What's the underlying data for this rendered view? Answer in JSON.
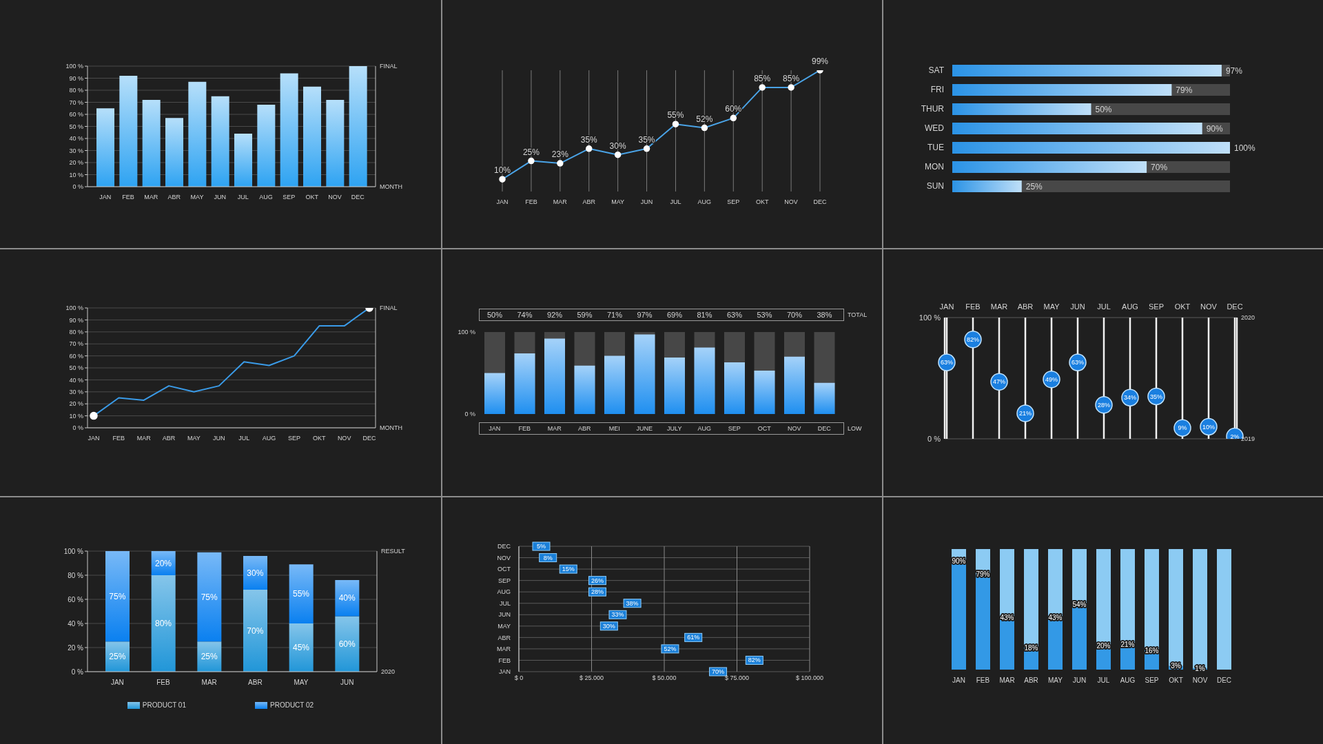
{
  "chart_data": [
    {
      "type": "bar",
      "categories": [
        "JAN",
        "FEB",
        "MAR",
        "ABR",
        "MAY",
        "JUN",
        "JUL",
        "AUG",
        "SEP",
        "OKT",
        "NOV",
        "DEC"
      ],
      "values": [
        65,
        92,
        72,
        57,
        87,
        75,
        44,
        68,
        94,
        83,
        72,
        100
      ],
      "color": "#2ea3f2",
      "ylim": [
        0,
        100
      ],
      "yticks": [
        {
          "value": 0,
          "label": "0 %"
        },
        {
          "value": 10,
          "label": "10 %"
        },
        {
          "value": 20,
          "label": "20 %"
        },
        {
          "value": 30,
          "label": "30 %"
        },
        {
          "value": 40,
          "label": "40 %"
        },
        {
          "value": 50,
          "label": "50 %"
        },
        {
          "value": 60,
          "label": "60 %"
        },
        {
          "value": 70,
          "label": "70 %"
        },
        {
          "value": 80,
          "label": "80 %"
        },
        {
          "value": 90,
          "label": "90 %"
        },
        {
          "value": 100,
          "label": "100 %"
        }
      ],
      "annotations": [
        "FINAL",
        "MONTH"
      ],
      "grid": "y"
    },
    {
      "type": "line",
      "categories": [
        "JAN",
        "FEB",
        "MAR",
        "ABR",
        "MAY",
        "JUN",
        "JUL",
        "AUG",
        "SEP",
        "OKT",
        "NOV",
        "DEC"
      ],
      "values": [
        10,
        25,
        23,
        35,
        30,
        35,
        55,
        52,
        60,
        85,
        85,
        99
      ],
      "value_labels": [
        "10%",
        "25%",
        "23%",
        "35%",
        "30%",
        "35%",
        "55%",
        "52%",
        "60%",
        "85%",
        "85%",
        "99%"
      ],
      "color": "#4aa3e6",
      "marker": "circle",
      "grid": "x"
    },
    {
      "type": "bar",
      "orientation": "horizontal",
      "categories": [
        "SAT",
        "FRI",
        "THUR",
        "WED",
        "TUE",
        "MON",
        "SUN"
      ],
      "values": [
        97,
        79,
        50,
        90,
        100,
        70,
        25
      ],
      "value_labels": [
        "97%",
        "79%",
        "50%",
        "90%",
        "100%",
        "70%",
        "25%"
      ],
      "color": "#2b93e6"
    },
    {
      "type": "line",
      "categories": [
        "JAN",
        "FEB",
        "MAR",
        "ABR",
        "MAY",
        "JUN",
        "JUL",
        "AUG",
        "SEP",
        "OKT",
        "NOV",
        "DEC"
      ],
      "series": [
        {
          "values": [
            10,
            25,
            23,
            35,
            30,
            35,
            55,
            52,
            60,
            85,
            85,
            100
          ],
          "color": "#3a9be8"
        },
        {
          "type": "scatter",
          "x": [
            "JAN",
            "DEC"
          ],
          "values": [
            10,
            100
          ],
          "color": "#ffffff",
          "marker": "circle"
        }
      ],
      "ylim": [
        0,
        100
      ],
      "yticks": [
        {
          "value": 0,
          "label": "0 %"
        },
        {
          "value": 10,
          "label": "10 %"
        },
        {
          "value": 20,
          "label": "20 %"
        },
        {
          "value": 30,
          "label": "30 %"
        },
        {
          "value": 40,
          "label": "40 %"
        },
        {
          "value": 50,
          "label": "50 %"
        },
        {
          "value": 60,
          "label": "60 %"
        },
        {
          "value": 70,
          "label": "70 %"
        },
        {
          "value": 80,
          "label": "80 %"
        },
        {
          "value": 90,
          "label": "90 %"
        },
        {
          "value": 100,
          "label": "100 %"
        }
      ],
      "annotations": [
        "FINAL",
        "MONTH"
      ],
      "grid": "y"
    },
    {
      "type": "bar",
      "categories": [
        "JAN",
        "FEB",
        "MAR",
        "ABR",
        "MEI",
        "JUNE",
        "JULY",
        "AUG",
        "SEP",
        "OCT",
        "NOV",
        "DEC"
      ],
      "values": [
        50,
        74,
        92,
        59,
        71,
        97,
        69,
        81,
        63,
        53,
        70,
        38
      ],
      "value_labels": [
        "50%",
        "74%",
        "92%",
        "59%",
        "71%",
        "97%",
        "69%",
        "81%",
        "63%",
        "53%",
        "70%",
        "38%"
      ],
      "color": "#1f8ff0",
      "ylim": [
        0,
        100
      ],
      "yticks": [
        {
          "value": 0,
          "label": "0 %"
        },
        {
          "value": 100,
          "label": "100 %"
        }
      ],
      "annotations": [
        "TOTAL",
        "LOW"
      ]
    },
    {
      "type": "scatter",
      "categories": [
        "JAN",
        "FEB",
        "MAR",
        "ABR",
        "MAY",
        "JUN",
        "JUL",
        "AUG",
        "SEP",
        "OKT",
        "NOV",
        "DEC"
      ],
      "values": [
        63,
        82,
        47,
        21,
        49,
        63,
        28,
        34,
        35,
        9,
        10,
        2
      ],
      "value_labels": [
        "63%",
        "82%",
        "47%",
        "21%",
        "49%",
        "63%",
        "28%",
        "34%",
        "35%",
        "9%",
        "10%",
        "2%"
      ],
      "color": "#1a7fe0",
      "marker": "circle",
      "ylim": [
        0,
        100
      ],
      "yticks": [
        {
          "value": 0,
          "label": "0 %"
        },
        {
          "value": 100,
          "label": "100 %"
        }
      ],
      "annotations": [
        "2020",
        "2019"
      ],
      "grid": true
    },
    {
      "type": "bar",
      "stacked": true,
      "categories": [
        "JAN",
        "FEB",
        "MAR",
        "ABR",
        "MAY",
        "JUN"
      ],
      "series": [
        {
          "name": "PRODUCT 01",
          "color": "#2196d8",
          "values": [
            25,
            80,
            25,
            68,
            40,
            46
          ]
        },
        {
          "name": "PRODUCT 02",
          "color": "#0a80f0",
          "values": [
            75,
            20,
            74,
            28,
            49,
            30
          ]
        }
      ],
      "ylim": [
        0,
        100
      ],
      "yticks": [
        {
          "value": 0,
          "label": "0 %"
        },
        {
          "value": 20,
          "label": "20 %"
        },
        {
          "value": 40,
          "label": "40 %"
        },
        {
          "value": 60,
          "label": "60 %"
        },
        {
          "value": 80,
          "label": "80 %"
        },
        {
          "value": 100,
          "label": "100 %"
        }
      ],
      "grid": "y",
      "legend": "bottom",
      "annotations": [
        "RESULT",
        "2020",
        "25%",
        "75%",
        "80%",
        "20%",
        "25%",
        "75%",
        "70%",
        "30%",
        "45%",
        "55%",
        "60%",
        "40%"
      ]
    },
    {
      "type": "scatter",
      "orientation": "horizontal",
      "categories": [
        "DEC",
        "NOV",
        "OCT",
        "SEP",
        "AUG",
        "JUL",
        "JUN",
        "MAY",
        "ABR",
        "MAR",
        "FEB",
        "JAN"
      ],
      "values": [
        7700,
        10000,
        17000,
        27000,
        27000,
        39000,
        34000,
        31000,
        60000,
        52000,
        81000,
        68500
      ],
      "color": "#1a7fd8",
      "marker": "square",
      "xlim": [
        0,
        100000
      ],
      "xticks": [
        {
          "value": 0,
          "label": "$ 0"
        },
        {
          "value": 25000,
          "label": "$ 25.000"
        },
        {
          "value": 50000,
          "label": "$ 50.000"
        },
        {
          "value": 75000,
          "label": "$ 75.000"
        },
        {
          "value": 100000,
          "label": "$ 100.000"
        }
      ],
      "grid": true,
      "annotations": [
        "5%",
        "8%",
        "15%",
        "26%",
        "28%",
        "38%",
        "33%",
        "30%",
        "61%",
        "52%",
        "82%",
        "70%"
      ]
    },
    {
      "type": "bar",
      "stacked": true,
      "categories": [
        "JAN",
        "FEB",
        "MAR",
        "ABR",
        "MAY",
        "JUN",
        "JUL",
        "AUG",
        "SEP",
        "OKT",
        "NOV",
        "DEC"
      ],
      "series": [
        {
          "values": [
            90,
            79,
            43,
            18,
            43,
            54,
            20,
            21,
            16,
            3,
            1,
            null
          ],
          "value_labels": [
            "90%",
            "79%",
            "43%",
            "18%",
            "43%",
            "54%",
            "20%",
            "21%",
            "16%",
            "3%",
            "1%",
            null
          ],
          "color": "#3399e6"
        },
        {
          "values": [
            10,
            21,
            57,
            82,
            57,
            46,
            80,
            79,
            84,
            97,
            99,
            100
          ],
          "color": "#8ccbf3"
        }
      ]
    }
  ]
}
